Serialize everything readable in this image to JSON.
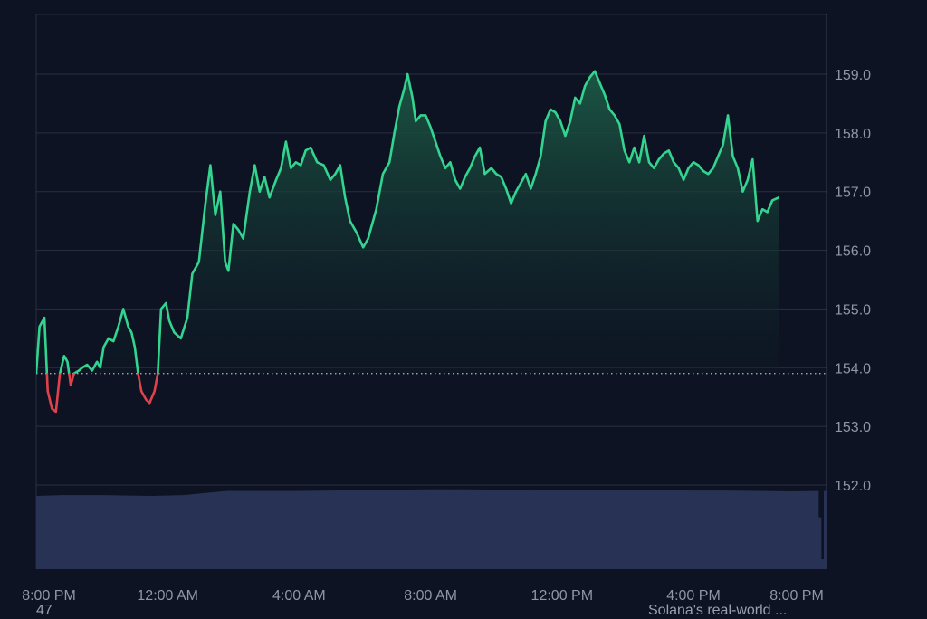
{
  "chart_data": {
    "type": "area",
    "title": "",
    "xlabel": "",
    "ylabel": "",
    "baseline": 153.9,
    "ylim": [
      151.4,
      159.5
    ],
    "yticks": [
      152.0,
      153.0,
      154.0,
      155.0,
      156.0,
      157.0,
      158.0,
      159.0
    ],
    "ytick_labels": [
      "152.0",
      "153.0",
      "154.0",
      "155.0",
      "156.0",
      "157.0",
      "158.0",
      "159.0"
    ],
    "xticks": [
      {
        "label": "8:00 PM",
        "t": 0
      },
      {
        "label": "12:00 AM",
        "t": 4
      },
      {
        "label": "4:00 AM",
        "t": 8
      },
      {
        "label": "8:00 AM",
        "t": 12
      },
      {
        "label": "12:00 PM",
        "t": 16
      },
      {
        "label": "4:00 PM",
        "t": 20
      },
      {
        "label": "8:00 PM",
        "t": 24
      }
    ],
    "x_unit": "hours since 8:00 PM",
    "grid": true,
    "colors": {
      "up": "#33d48f",
      "down": "#e0424d",
      "fill_top": "#1c5a45",
      "fill_bottom": "#0d1322",
      "volume": "#283254",
      "grid": "#283042",
      "baseline": "#cfd4df"
    },
    "series": [
      {
        "values": [
          [
            0.0,
            153.9
          ],
          [
            0.1,
            154.7
          ],
          [
            0.25,
            154.85
          ],
          [
            0.35,
            153.6
          ],
          [
            0.48,
            153.3
          ],
          [
            0.6,
            153.25
          ],
          [
            0.72,
            153.9
          ],
          [
            0.85,
            154.2
          ],
          [
            0.95,
            154.1
          ],
          [
            1.05,
            153.7
          ],
          [
            1.15,
            153.9
          ],
          [
            1.3,
            153.95
          ],
          [
            1.4,
            154.0
          ],
          [
            1.55,
            154.05
          ],
          [
            1.7,
            153.95
          ],
          [
            1.85,
            154.1
          ],
          [
            1.95,
            154.0
          ],
          [
            2.05,
            154.35
          ],
          [
            2.2,
            154.5
          ],
          [
            2.35,
            154.45
          ],
          [
            2.5,
            154.7
          ],
          [
            2.65,
            155.0
          ],
          [
            2.8,
            154.7
          ],
          [
            2.9,
            154.6
          ],
          [
            3.0,
            154.35
          ],
          [
            3.1,
            153.9
          ],
          [
            3.2,
            153.6
          ],
          [
            3.35,
            153.45
          ],
          [
            3.45,
            153.4
          ],
          [
            3.6,
            153.6
          ],
          [
            3.7,
            153.9
          ],
          [
            3.8,
            155.0
          ],
          [
            3.95,
            155.1
          ],
          [
            4.05,
            154.8
          ],
          [
            4.2,
            154.6
          ],
          [
            4.4,
            154.5
          ],
          [
            4.6,
            154.85
          ],
          [
            4.75,
            155.6
          ],
          [
            4.95,
            155.8
          ],
          [
            5.15,
            156.8
          ],
          [
            5.3,
            157.45
          ],
          [
            5.45,
            156.6
          ],
          [
            5.6,
            157.0
          ],
          [
            5.75,
            155.8
          ],
          [
            5.85,
            155.65
          ],
          [
            6.0,
            156.45
          ],
          [
            6.15,
            156.35
          ],
          [
            6.3,
            156.2
          ],
          [
            6.5,
            157.0
          ],
          [
            6.65,
            157.45
          ],
          [
            6.8,
            157.0
          ],
          [
            6.95,
            157.25
          ],
          [
            7.1,
            156.9
          ],
          [
            7.3,
            157.2
          ],
          [
            7.45,
            157.4
          ],
          [
            7.6,
            157.85
          ],
          [
            7.75,
            157.4
          ],
          [
            7.9,
            157.5
          ],
          [
            8.05,
            157.45
          ],
          [
            8.2,
            157.7
          ],
          [
            8.35,
            157.75
          ],
          [
            8.55,
            157.5
          ],
          [
            8.75,
            157.45
          ],
          [
            8.95,
            157.2
          ],
          [
            9.1,
            157.3
          ],
          [
            9.25,
            157.45
          ],
          [
            9.4,
            156.9
          ],
          [
            9.55,
            156.5
          ],
          [
            9.75,
            156.3
          ],
          [
            9.95,
            156.05
          ],
          [
            10.1,
            156.2
          ],
          [
            10.35,
            156.7
          ],
          [
            10.55,
            157.3
          ],
          [
            10.75,
            157.5
          ],
          [
            10.9,
            158.0
          ],
          [
            11.05,
            158.45
          ],
          [
            11.2,
            158.75
          ],
          [
            11.3,
            159.0
          ],
          [
            11.45,
            158.6
          ],
          [
            11.55,
            158.2
          ],
          [
            11.7,
            158.3
          ],
          [
            11.85,
            158.3
          ],
          [
            12.0,
            158.1
          ],
          [
            12.15,
            157.85
          ],
          [
            12.3,
            157.6
          ],
          [
            12.45,
            157.4
          ],
          [
            12.6,
            157.5
          ],
          [
            12.75,
            157.2
          ],
          [
            12.9,
            157.05
          ],
          [
            13.05,
            157.25
          ],
          [
            13.2,
            157.4
          ],
          [
            13.35,
            157.6
          ],
          [
            13.5,
            157.75
          ],
          [
            13.65,
            157.3
          ],
          [
            13.85,
            157.4
          ],
          [
            14.0,
            157.3
          ],
          [
            14.15,
            157.25
          ],
          [
            14.3,
            157.05
          ],
          [
            14.45,
            156.8
          ],
          [
            14.6,
            157.0
          ],
          [
            14.75,
            157.15
          ],
          [
            14.9,
            157.3
          ],
          [
            15.05,
            157.05
          ],
          [
            15.2,
            157.3
          ],
          [
            15.35,
            157.6
          ],
          [
            15.5,
            158.2
          ],
          [
            15.65,
            158.4
          ],
          [
            15.8,
            158.35
          ],
          [
            15.95,
            158.2
          ],
          [
            16.1,
            157.95
          ],
          [
            16.25,
            158.2
          ],
          [
            16.4,
            158.6
          ],
          [
            16.55,
            158.5
          ],
          [
            16.7,
            158.8
          ],
          [
            16.85,
            158.95
          ],
          [
            17.0,
            159.05
          ],
          [
            17.15,
            158.85
          ],
          [
            17.3,
            158.65
          ],
          [
            17.45,
            158.4
          ],
          [
            17.6,
            158.3
          ],
          [
            17.75,
            158.15
          ],
          [
            17.9,
            157.7
          ],
          [
            18.05,
            157.5
          ],
          [
            18.2,
            157.75
          ],
          [
            18.35,
            157.5
          ],
          [
            18.5,
            157.95
          ],
          [
            18.65,
            157.5
          ],
          [
            18.8,
            157.4
          ],
          [
            18.95,
            157.55
          ],
          [
            19.1,
            157.65
          ],
          [
            19.25,
            157.7
          ],
          [
            19.4,
            157.5
          ],
          [
            19.55,
            157.4
          ],
          [
            19.7,
            157.2
          ],
          [
            19.85,
            157.4
          ],
          [
            20.0,
            157.5
          ],
          [
            20.15,
            157.45
          ],
          [
            20.3,
            157.35
          ],
          [
            20.45,
            157.3
          ],
          [
            20.6,
            157.4
          ],
          [
            20.75,
            157.6
          ],
          [
            20.9,
            157.8
          ],
          [
            21.05,
            158.3
          ],
          [
            21.2,
            157.6
          ],
          [
            21.35,
            157.4
          ],
          [
            21.5,
            157.0
          ],
          [
            21.65,
            157.2
          ],
          [
            21.8,
            157.55
          ],
          [
            21.95,
            156.5
          ],
          [
            22.1,
            156.7
          ],
          [
            22.25,
            156.65
          ],
          [
            22.4,
            156.85
          ],
          [
            22.6,
            156.9
          ]
        ]
      }
    ],
    "volume": {
      "x_range": [
        0.0,
        24.05
      ],
      "values": [
        [
          0.0,
          0.89
        ],
        [
          0.8,
          0.9
        ],
        [
          2.0,
          0.9
        ],
        [
          3.5,
          0.89
        ],
        [
          4.5,
          0.9
        ],
        [
          5.0,
          0.92
        ],
        [
          5.8,
          0.95
        ],
        [
          7.0,
          0.95
        ],
        [
          8.0,
          0.95
        ],
        [
          9.0,
          0.955
        ],
        [
          10.0,
          0.96
        ],
        [
          11.0,
          0.965
        ],
        [
          12.0,
          0.97
        ],
        [
          13.0,
          0.97
        ],
        [
          14.0,
          0.965
        ],
        [
          15.0,
          0.955
        ],
        [
          16.0,
          0.96
        ],
        [
          17.0,
          0.965
        ],
        [
          18.0,
          0.965
        ],
        [
          19.0,
          0.96
        ],
        [
          20.0,
          0.955
        ],
        [
          21.0,
          0.955
        ],
        [
          22.0,
          0.95
        ],
        [
          23.0,
          0.945
        ],
        [
          23.8,
          0.95
        ],
        [
          23.9,
          0.2
        ],
        [
          24.0,
          0.95
        ]
      ]
    }
  },
  "footer": {
    "left_text": "47",
    "right_text": "Solana's real-world ..."
  }
}
